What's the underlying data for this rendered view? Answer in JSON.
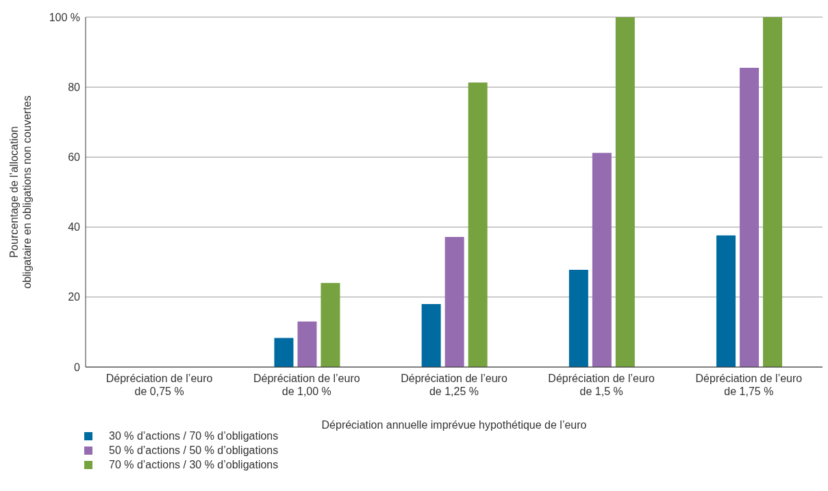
{
  "chart_data": {
    "type": "bar",
    "xlabel": "Dépréciation annuelle imprévue hypothétique de l’euro",
    "ylabel": "Pourcentage de l’allocation obligataire en obligations non couvertes",
    "categories": [
      "Dépréciation de l’euro de 0,75 %",
      "Dépréciation de l’euro de 1,00 %",
      "Dépréciation de l’euro de 1,25 %",
      "Dépréciation de l’euro de 1,5 %",
      "Dépréciation de l’euro de 1,75 %"
    ],
    "series": [
      {
        "name": "30 % d’actions / 70 % d’obligations",
        "color": "#006ba1",
        "values": [
          0,
          8.3,
          18,
          27.8,
          37.6
        ]
      },
      {
        "name": "50 % d’actions / 50 % d’obligations",
        "color": "#966cb0",
        "values": [
          0,
          13,
          37.2,
          61.2,
          85.5
        ]
      },
      {
        "name": "70 % d’actions / 30 % d’obligations",
        "color": "#76a23f",
        "values": [
          0,
          24,
          81.3,
          100,
          100
        ]
      }
    ],
    "ylim": [
      0,
      100
    ],
    "yticks": [
      0,
      20,
      40,
      60,
      80,
      {
        "value": 100,
        "label": "100 %"
      }
    ],
    "grid": "y",
    "legend": "bottom left"
  }
}
